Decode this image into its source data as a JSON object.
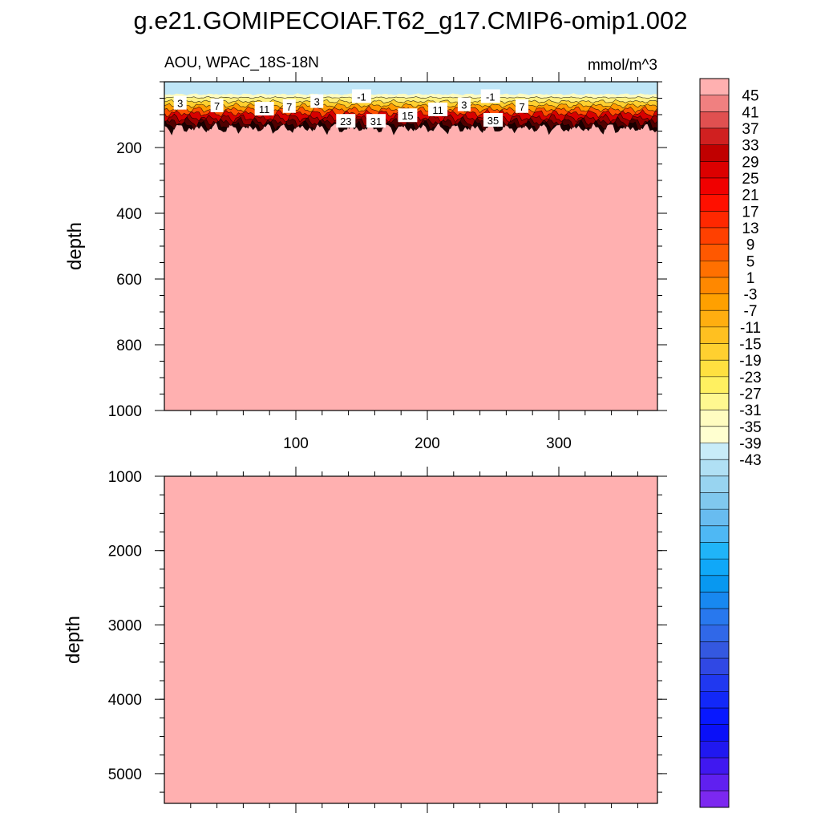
{
  "chart_data": {
    "type": "heatmap",
    "title": "g.e21.GOMIPECOIAF.T62_g17.CMIP6-omip1.002",
    "variable": "AOU, WPAC_18S-18N",
    "units": "mmol/m^3",
    "xlim": [
      0,
      375
    ],
    "x_ticks": [
      100,
      200,
      300
    ],
    "colors": {
      "background_value": "#ffb0b0",
      "surface_value": "#bfe6f7"
    },
    "panels": [
      {
        "name": "upper",
        "ylabel": "depth",
        "ylim": [
          0,
          1000
        ],
        "y_ticks": [
          200,
          400,
          600,
          800,
          1000
        ],
        "show_x_tick_labels": true,
        "contour_labels": [
          {
            "text": "3",
            "x": 12,
            "depth": 65
          },
          {
            "text": "7",
            "x": 40,
            "depth": 73
          },
          {
            "text": "11",
            "x": 76,
            "depth": 83
          },
          {
            "text": "7",
            "x": 95,
            "depth": 75
          },
          {
            "text": "3",
            "x": 116,
            "depth": 60
          },
          {
            "text": "-1",
            "x": 150,
            "depth": 45
          },
          {
            "text": "23",
            "x": 138,
            "depth": 120
          },
          {
            "text": "31",
            "x": 161,
            "depth": 120
          },
          {
            "text": "15",
            "x": 185,
            "depth": 103
          },
          {
            "text": "11",
            "x": 208,
            "depth": 85
          },
          {
            "text": "3",
            "x": 228,
            "depth": 70
          },
          {
            "text": "-1",
            "x": 248,
            "depth": 45
          },
          {
            "text": "35",
            "x": 250,
            "depth": 117
          },
          {
            "text": "7",
            "x": 272,
            "depth": 75
          }
        ]
      },
      {
        "name": "lower",
        "ylabel": "depth",
        "ylim": [
          1000,
          5400
        ],
        "y_ticks": [
          1000,
          2000,
          3000,
          4000,
          5000
        ],
        "show_x_tick_labels": false,
        "contour_labels": []
      }
    ],
    "colorbar": {
      "labels": [
        "45",
        "41",
        "37",
        "33",
        "29",
        "25",
        "21",
        "17",
        "13",
        "9",
        "5",
        "1",
        "-3",
        "-7",
        "-11",
        "-15",
        "-19",
        "-23",
        "-27",
        "-31",
        "-35",
        "-39",
        "-43"
      ],
      "colors": [
        "#ffb0b0",
        "#f08080",
        "#e05050",
        "#d02020",
        "#c00000",
        "#dc0000",
        "#f00000",
        "#ff1000",
        "#ff2800",
        "#ff4000",
        "#ff5800",
        "#ff7000",
        "#ff8800",
        "#ffa000",
        "#ffae10",
        "#ffc020",
        "#ffd030",
        "#ffe040",
        "#fff060",
        "#fff890",
        "#fffcc0",
        "#ffffd0",
        "#c8ecf8",
        "#b0e0f4",
        "#98d4f0",
        "#80c8ee",
        "#68bcf0",
        "#4eb8f4",
        "#20b4f8",
        "#10a8f8",
        "#0898f0",
        "#1888f0",
        "#2878ee",
        "#3068e8",
        "#3458e0",
        "#3048e4",
        "#2038f0",
        "#1228f8",
        "#0818ff",
        "#0a10f8",
        "#2018f0",
        "#4018f0",
        "#6020f0",
        "#7c28f0"
      ]
    }
  }
}
